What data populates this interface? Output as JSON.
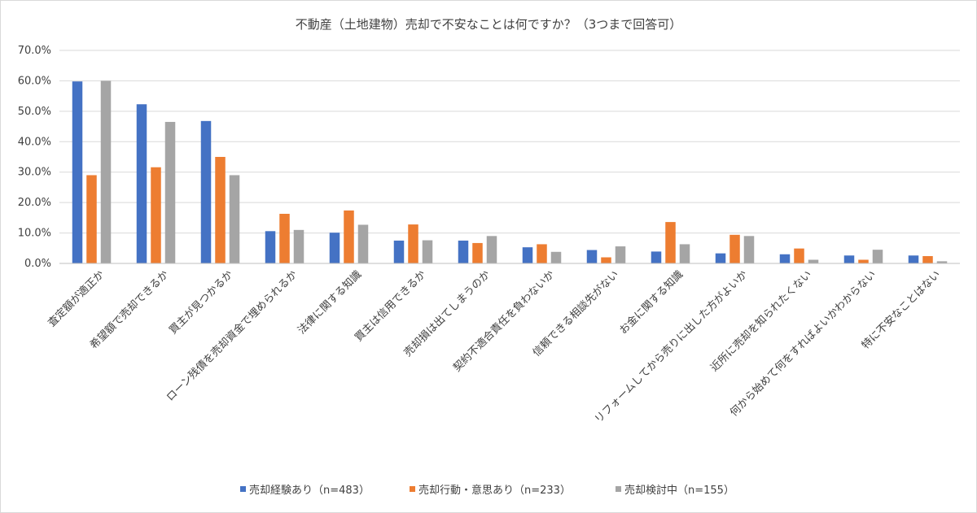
{
  "chart_data": {
    "type": "bar",
    "title": "不動産（土地建物）売却で不安なことは何ですか？（3つまで回答可）",
    "xlabel": "",
    "ylabel": "",
    "ylim": [
      0,
      70
    ],
    "yticks": [
      "0.0%",
      "10.0%",
      "20.0%",
      "30.0%",
      "40.0%",
      "50.0%",
      "60.0%",
      "70.0%"
    ],
    "grid": true,
    "legend_position": "bottom",
    "categories": [
      "査定額が適正か",
      "希望額で売却できるか",
      "買主が見つかるか",
      "ローン残債を売却資金で埋められるか",
      "法律に関する知識",
      "買主は信用できるか",
      "売却損は出てしまうのか",
      "契約不適合責任を負わないか",
      "信頼できる相談先がない",
      "お金に関する知識",
      "リフォームしてから売りに出した方がよいか",
      "近所に売却を知られたくない",
      "何から始めて何をすればよいかわからない",
      "特に不安なことはない"
    ],
    "series": [
      {
        "name": "売却経験あり（n=483）",
        "color": "#4472c4",
        "values": [
          59.8,
          52.3,
          46.8,
          10.6,
          10.1,
          7.5,
          7.5,
          5.3,
          4.4,
          3.9,
          3.3,
          3.0,
          2.6,
          2.6
        ]
      },
      {
        "name": "売却行動・意思あり（n=233）",
        "color": "#ed7d31",
        "values": [
          29.0,
          31.6,
          35.0,
          16.3,
          17.4,
          12.8,
          6.7,
          6.3,
          2.0,
          13.6,
          9.4,
          4.9,
          1.2,
          2.4
        ]
      },
      {
        "name": "売却検討中（n=155）",
        "color": "#a5a5a5",
        "values": [
          60.0,
          46.5,
          29.0,
          11.0,
          12.7,
          7.6,
          9.0,
          3.8,
          5.6,
          6.3,
          9.0,
          1.2,
          4.5,
          0.7
        ]
      }
    ]
  }
}
